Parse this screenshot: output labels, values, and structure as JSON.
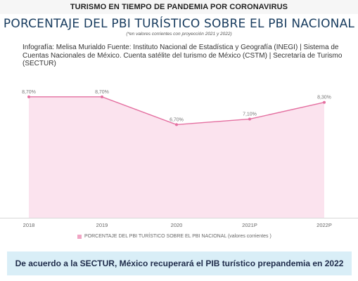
{
  "header": {
    "banner": "TURISMO EN TIEMPO DE PANDEMIA POR CORONAVIRUS",
    "title": "PORCENTAJE DEL PBI TURÍSTICO SOBRE EL PBI NACIONAL",
    "note": "(*en valores corrientes con proyección 2021 y 2022)",
    "credit": "Infografía: Melisa Murialdo Fuente: Instituto Nacional de Estadística y Geografía (INEGI) | Sistema de Cuentas Nacionales de México. Cuenta satélite del turismo de México (CSTM) | Secretaría de Turismo (SECTUR)"
  },
  "colors": {
    "line": "#e46fa0",
    "fill": "#fbe3ee",
    "title": "#173b5e",
    "bottom_box": "#d9eef7"
  },
  "chart_data": {
    "type": "area",
    "categories": [
      "2018",
      "2019",
      "2020",
      "2021P",
      "2022P"
    ],
    "series": [
      {
        "name": "PORCENTAJE DEL PBI TURÍSTICO SOBRE EL PBI NACIONAL (valores corrientes )",
        "values": [
          8.7,
          8.7,
          6.7,
          7.1,
          8.3
        ],
        "labels": [
          "8,70%",
          "8,70%",
          "6,70%",
          "7,10%",
          "8,30%"
        ]
      }
    ],
    "ylim": [
      0,
      9.6
    ],
    "grid": false,
    "legend_position": "bottom-center",
    "title": "PORCENTAJE DEL PBI TURÍSTICO SOBRE EL PBI NACIONAL",
    "xlabel": "",
    "ylabel": ""
  },
  "footer": {
    "message": "De acuerdo a la SECTUR, México recuperará el PIB turístico prepandemia en 2022"
  }
}
